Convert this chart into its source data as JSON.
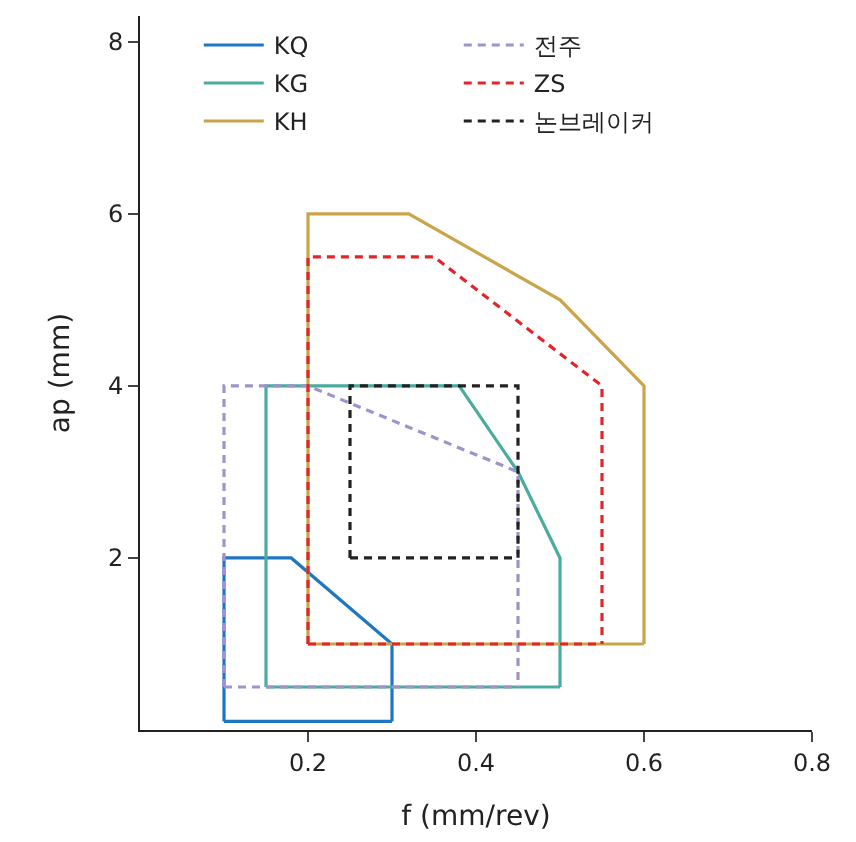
{
  "chart_data": {
    "type": "line",
    "xlabel": "f (mm/rev)",
    "ylabel": "ap (mm)",
    "xlim": [
      0,
      0.8
    ],
    "ylim": [
      0,
      8.3
    ],
    "xticks": [
      0.2,
      0.4,
      0.6,
      0.8
    ],
    "yticks": [
      2,
      4,
      6,
      8
    ],
    "legend": "top left",
    "marker": "none",
    "series": [
      {
        "name": "KQ",
        "color": "#1f77c4",
        "line_style": "solid",
        "x": [
          0.1,
          0.1,
          0.18,
          0.3,
          0.3
        ],
        "values": [
          0.1,
          2,
          2,
          1,
          0.1
        ]
      },
      {
        "name": "전주",
        "color": "#9f93c9",
        "line_style": "dashed",
        "x": [
          0.1,
          0.1,
          0.2,
          0.45,
          0.45
        ],
        "values": [
          0.5,
          4,
          4,
          3,
          0.5
        ]
      },
      {
        "name": "KG",
        "color": "#4aab9f",
        "line_style": "solid",
        "x": [
          0.15,
          0.15,
          0.38,
          0.45,
          0.5,
          0.5
        ],
        "values": [
          0.5,
          4,
          4,
          3,
          2,
          0.5
        ]
      },
      {
        "name": "ZS",
        "color": "#e2242b",
        "line_style": "dashed",
        "x": [
          0.2,
          0.2,
          0.35,
          0.55,
          0.55
        ],
        "values": [
          1,
          5.5,
          5.5,
          4,
          1
        ]
      },
      {
        "name": "KH",
        "color": "#c9a449",
        "line_style": "solid",
        "x": [
          0.2,
          0.2,
          0.32,
          0.5,
          0.6,
          0.6
        ],
        "values": [
          1,
          6,
          6,
          5,
          4,
          1
        ]
      },
      {
        "name": "논브레이커",
        "color": "#222222",
        "line_style": "dashed",
        "x": [
          0.25,
          0.25,
          0.45,
          0.45
        ],
        "values": [
          2,
          4,
          4,
          2
        ]
      },
      {
        "color": "#1f77c4",
        "line_style": "solid",
        "x": [
          0.1,
          0.3
        ],
        "values": [
          0.1,
          0.1
        ]
      },
      {
        "color": "#9f93c9",
        "line_style": "dashed",
        "x": [
          0.1,
          0.45
        ],
        "values": [
          0.5,
          0.5
        ]
      },
      {
        "color": "#4aab9f",
        "line_style": "solid",
        "x": [
          0.15,
          0.5
        ],
        "values": [
          0.5,
          0.5
        ]
      },
      {
        "color": "#e2242b",
        "line_style": "dashed",
        "x": [
          0.2,
          0.55
        ],
        "values": [
          1,
          1
        ]
      },
      {
        "color": "#c9a449",
        "line_style": "solid",
        "x": [
          0.2,
          0.6
        ],
        "values": [
          1,
          1
        ]
      },
      {
        "color": "#222222",
        "line_style": "dashed",
        "x": [
          0.25,
          0.45
        ],
        "values": [
          2,
          2
        ]
      }
    ]
  }
}
